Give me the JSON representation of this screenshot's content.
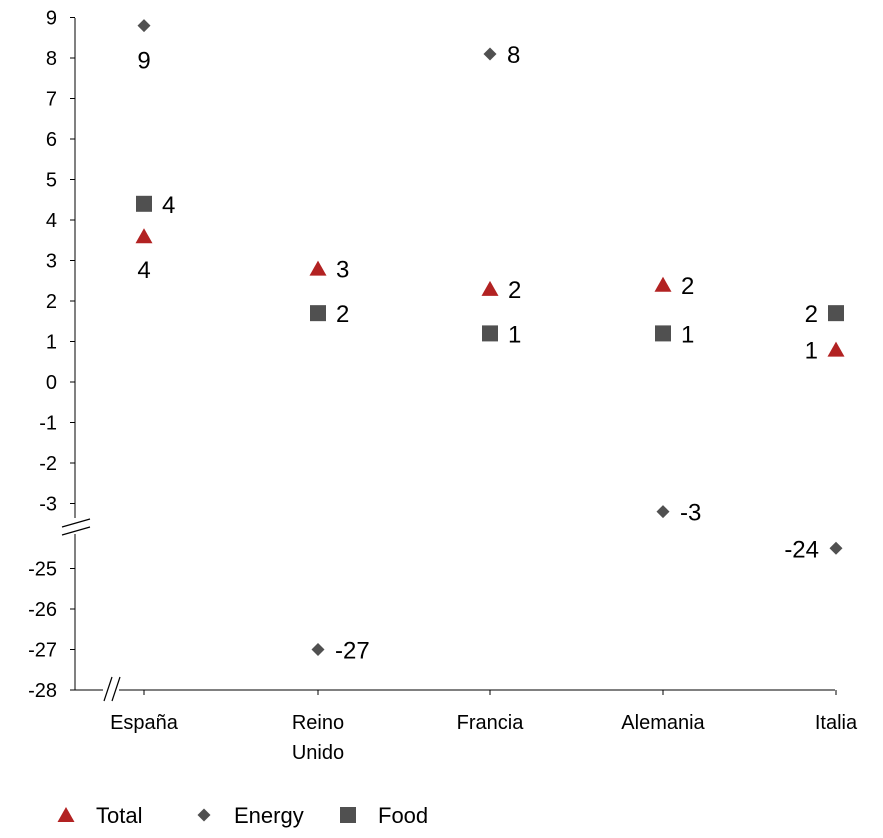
{
  "chart_data": {
    "type": "scatter",
    "categories": [
      "España",
      "Reino\nUnido",
      "Francia",
      "Alemania",
      "Italia"
    ],
    "y_axis": {
      "upper_segment_range": [
        -3.5,
        9
      ],
      "lower_segment_range": [
        -28,
        -24
      ],
      "upper_tick_labels": [
        "9",
        "8",
        "7",
        "6",
        "5",
        "4",
        "3",
        "2",
        "1",
        "0",
        "-1",
        "-2",
        "-3"
      ],
      "lower_tick_labels": [
        "-25",
        "-26",
        "-27",
        "-28"
      ],
      "broken_axis": true
    },
    "series": [
      {
        "name": "Total",
        "marker": "triangle",
        "color": "#b22222",
        "values": [
          3.6,
          2.8,
          2.3,
          2.4,
          0.8
        ],
        "labels": [
          "4",
          "3",
          "2",
          "2",
          "1"
        ]
      },
      {
        "name": "Energy",
        "marker": "diamond",
        "color": "#505050",
        "values": [
          8.8,
          -27.0,
          8.1,
          -3.2,
          -24.5
        ],
        "labels": [
          "9",
          "-27",
          "8",
          "-3",
          "-24"
        ]
      },
      {
        "name": "Food",
        "marker": "square",
        "color": "#505050",
        "values": [
          4.4,
          1.7,
          1.2,
          1.2,
          1.7
        ],
        "labels": [
          "4",
          "2",
          "1",
          "1",
          "2"
        ]
      }
    ],
    "legend": {
      "position": "bottom-left",
      "entries": [
        "Total",
        "Energy",
        "Food"
      ]
    },
    "grid": false
  }
}
